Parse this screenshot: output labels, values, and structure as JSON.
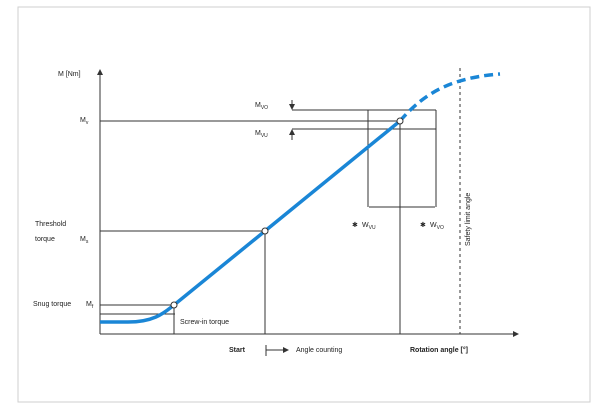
{
  "diagram": {
    "y_axis_label": "M [Nm]",
    "x_axis_label": "Rotation angle [°]",
    "labels": {
      "mv": "M",
      "mv_sub": "v",
      "ms": "M",
      "ms_sub": "s",
      "mf": "M",
      "mf_sub": "f",
      "threshold_line1": "Threshold",
      "threshold_line2": "torque",
      "snug": "Snug torque",
      "mvo": "M",
      "mvo_sub": "VO",
      "mvu": "M",
      "mvu_sub": "VU",
      "wvo": "W",
      "wvo_sub": "VO",
      "wvu": "W",
      "wvu_sub": "VU",
      "screw_in": "Screw-in torque",
      "start": "Start",
      "angle_counting": "Angle counting",
      "safety_limit": "Safety limit angle"
    },
    "colors": {
      "curve": "#1a86d6",
      "axes": "#333333",
      "border": "#cfcfcf"
    }
  }
}
